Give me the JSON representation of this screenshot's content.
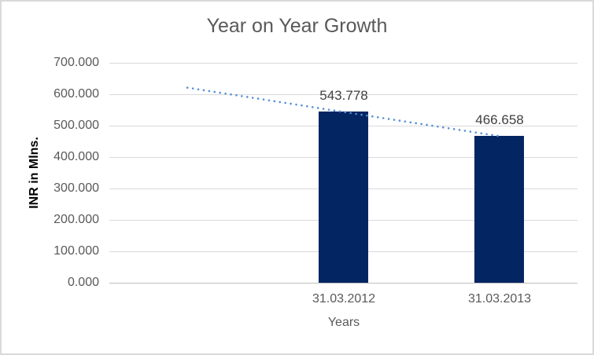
{
  "chart_data": {
    "type": "bar",
    "title": "Year on Year Growth",
    "xlabel": "Years",
    "ylabel": "INR in Mlns.",
    "categories": [
      "31.03.2012",
      "31.03.2013"
    ],
    "values": [
      543.778,
      466.658
    ],
    "data_labels": [
      "543.778",
      "466.658"
    ],
    "ylim": [
      0,
      700
    ],
    "yticks": [
      "0.000",
      "100.000",
      "200.000",
      "300.000",
      "400.000",
      "500.000",
      "600.000",
      "700.000"
    ],
    "grid": "horizontal",
    "legend": "none",
    "slot_count": 3,
    "bar_slot_offset": 1,
    "trendline": {
      "type": "linear",
      "style": "dotted",
      "points": [
        620.898,
        543.778,
        466.658
      ],
      "note": "linear trend extrapolated one period backward"
    },
    "colors": {
      "bar": "#032562",
      "trendline": "#5490d6",
      "gridline": "#d9d9d9",
      "axis_line": "#bfbfbf",
      "axis_text": "#595959",
      "data_label_text": "#404040",
      "ylabel_text": "#000000",
      "border": "#d9d9d9",
      "background": "#ffffff"
    }
  }
}
